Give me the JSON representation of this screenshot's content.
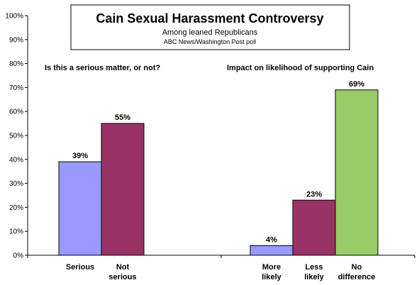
{
  "chart_data": {
    "type": "bar",
    "title": "Cain Sexual Harassment Controversy",
    "subtitle": "Among leaned Republicans",
    "source": "ABC News/Washington Post poll",
    "ylim": [
      0,
      100
    ],
    "yticks": [
      "0%",
      "10%",
      "20%",
      "30%",
      "40%",
      "50%",
      "60%",
      "70%",
      "80%",
      "90%",
      "100%"
    ],
    "grid": false,
    "groups": [
      {
        "question": "Is this a serious matter, or not?",
        "bars": [
          {
            "label": [
              "Serious"
            ],
            "value": 39,
            "display": "39%",
            "color": "#9999ff"
          },
          {
            "label": [
              "Not",
              "serious"
            ],
            "value": 55,
            "display": "55%",
            "color": "#993366"
          }
        ]
      },
      {
        "question": "Impact on likelihood of supporting Cain",
        "bars": [
          {
            "label": [
              "More",
              "likely"
            ],
            "value": 4,
            "display": "4%",
            "color": "#9999ff"
          },
          {
            "label": [
              "Less",
              "likely"
            ],
            "value": 23,
            "display": "23%",
            "color": "#993366"
          },
          {
            "label": [
              "No",
              "difference"
            ],
            "value": 69,
            "display": "69%",
            "color": "#99cc66"
          }
        ]
      }
    ]
  }
}
